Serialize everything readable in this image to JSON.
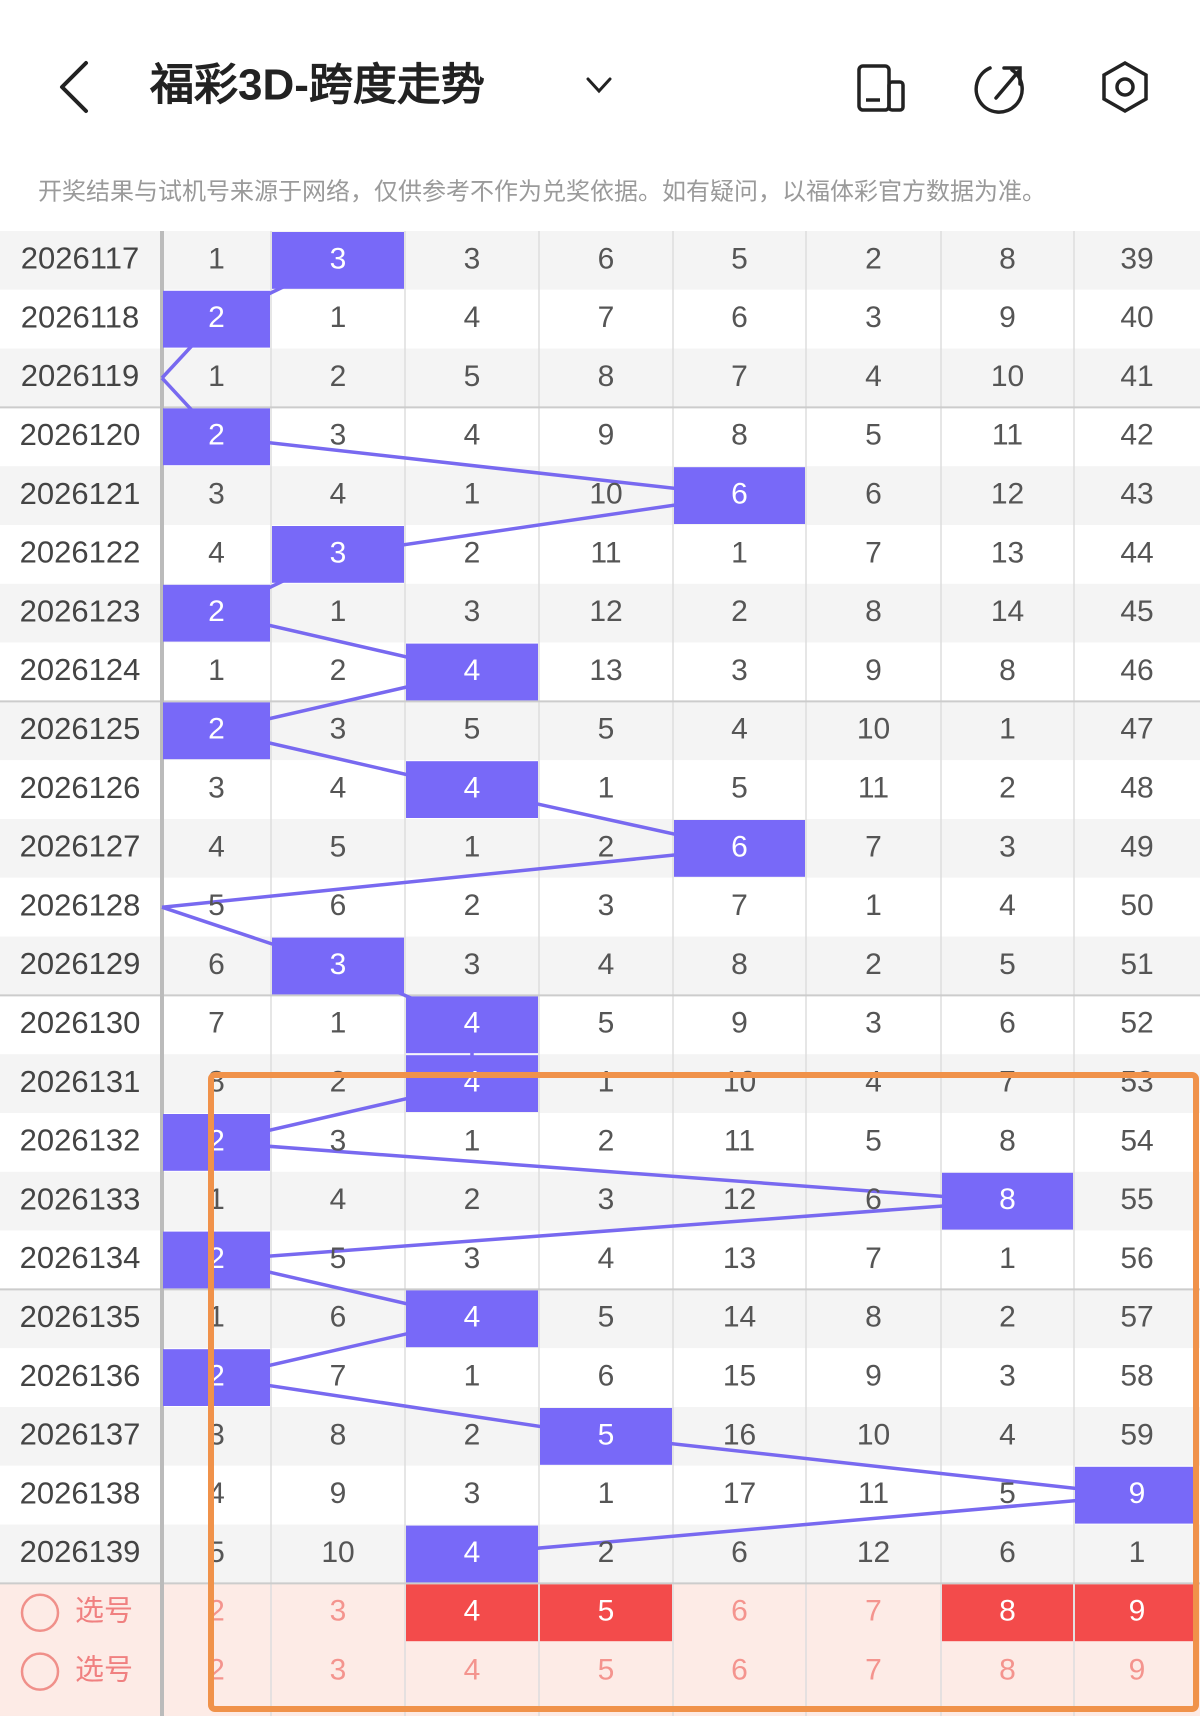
{
  "header": {
    "title": "福彩3D-跨度走势",
    "notice": "开奖结果与试机号来源于网络，仅供参考不作为兑奖依据。如有疑问，以福体彩官方数据为准。"
  },
  "table": {
    "rows": [
      {
        "period": "2026117",
        "cells": [
          1,
          3,
          3,
          6,
          5,
          2,
          8,
          39
        ]
      },
      {
        "period": "2026118",
        "cells": [
          2,
          1,
          4,
          7,
          6,
          3,
          9,
          40
        ]
      },
      {
        "period": "2026119",
        "cells": [
          1,
          2,
          5,
          8,
          7,
          4,
          10,
          41
        ]
      },
      {
        "period": "2026120",
        "cells": [
          2,
          3,
          4,
          9,
          8,
          5,
          11,
          42
        ]
      },
      {
        "period": "2026121",
        "cells": [
          3,
          4,
          1,
          10,
          6,
          6,
          12,
          43
        ]
      },
      {
        "period": "2026122",
        "cells": [
          4,
          3,
          2,
          11,
          1,
          7,
          13,
          44
        ]
      },
      {
        "period": "2026123",
        "cells": [
          2,
          1,
          3,
          12,
          2,
          8,
          14,
          45
        ]
      },
      {
        "period": "2026124",
        "cells": [
          1,
          2,
          4,
          13,
          3,
          9,
          8,
          46
        ]
      },
      {
        "period": "2026125",
        "cells": [
          2,
          3,
          5,
          5,
          4,
          10,
          1,
          47
        ]
      },
      {
        "period": "2026126",
        "cells": [
          3,
          4,
          4,
          1,
          5,
          11,
          2,
          48
        ]
      },
      {
        "period": "2026127",
        "cells": [
          4,
          5,
          1,
          2,
          6,
          7,
          3,
          49
        ]
      },
      {
        "period": "2026128",
        "cells": [
          5,
          6,
          2,
          3,
          7,
          1,
          4,
          50
        ]
      },
      {
        "period": "2026129",
        "cells": [
          6,
          3,
          3,
          4,
          8,
          2,
          5,
          51
        ]
      },
      {
        "period": "2026130",
        "cells": [
          7,
          1,
          4,
          5,
          9,
          3,
          6,
          52
        ]
      },
      {
        "period": "2026131",
        "cells": [
          8,
          2,
          4,
          1,
          10,
          4,
          7,
          53
        ]
      },
      {
        "period": "2026132",
        "cells": [
          2,
          3,
          1,
          2,
          11,
          5,
          8,
          54
        ]
      },
      {
        "period": "2026133",
        "cells": [
          1,
          4,
          2,
          3,
          12,
          6,
          8,
          55
        ]
      },
      {
        "period": "2026134",
        "cells": [
          2,
          5,
          3,
          4,
          13,
          7,
          1,
          56
        ]
      },
      {
        "period": "2026135",
        "cells": [
          1,
          6,
          4,
          5,
          14,
          8,
          2,
          57
        ]
      },
      {
        "period": "2026136",
        "cells": [
          2,
          7,
          1,
          6,
          15,
          9,
          3,
          58
        ]
      },
      {
        "period": "2026137",
        "cells": [
          3,
          8,
          2,
          5,
          16,
          10,
          4,
          59
        ]
      },
      {
        "period": "2026138",
        "cells": [
          4,
          9,
          3,
          1,
          17,
          11,
          5,
          9
        ]
      },
      {
        "period": "2026139",
        "cells": [
          5,
          10,
          4,
          2,
          6,
          12,
          6,
          1
        ]
      }
    ],
    "selections": [
      {
        "label": "选号",
        "numbers": [
          2,
          3,
          4,
          5,
          6,
          7,
          8,
          9
        ],
        "selected": [
          false,
          false,
          true,
          true,
          false,
          false,
          true,
          true
        ]
      },
      {
        "label": "选号",
        "numbers": [
          2,
          3,
          4,
          5,
          6,
          7,
          8,
          9
        ],
        "selected": [
          false,
          false,
          false,
          false,
          false,
          false,
          false,
          false
        ]
      }
    ]
  }
}
